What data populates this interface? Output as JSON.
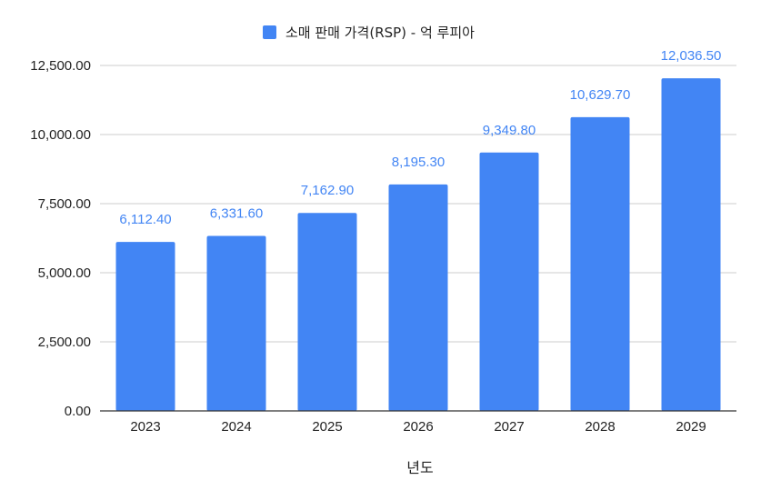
{
  "chart_data": {
    "type": "bar",
    "title": "",
    "xlabel": "년도",
    "ylabel": "",
    "categories": [
      "2023",
      "2024",
      "2025",
      "2026",
      "2027",
      "2028",
      "2029"
    ],
    "series": [
      {
        "name": "소매 판매 가격(RSP) - 억 루피아",
        "color": "#4285f4",
        "values": [
          6112.4,
          6331.6,
          7162.9,
          8195.3,
          9349.8,
          10629.7,
          12036.5
        ],
        "value_labels": [
          "6,112.40",
          "6,331.60",
          "7,162.90",
          "8,195.30",
          "9,349.80",
          "10,629.70",
          "12,036.50"
        ]
      }
    ],
    "ylim": [
      0,
      12500
    ],
    "yticks": [
      0,
      2500,
      5000,
      7500,
      10000,
      12500
    ],
    "ytick_labels": [
      "0.00",
      "2,500.00",
      "5,000.00",
      "7,500.00",
      "10,000.00",
      "12,500.00"
    ],
    "grid": true,
    "legend_position": "top-center"
  }
}
